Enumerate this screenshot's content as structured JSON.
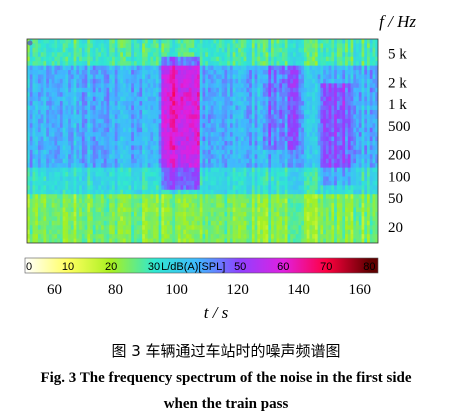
{
  "chart_data": {
    "type": "heatmap",
    "x_label": "t / s",
    "x_ticks": [
      60,
      80,
      100,
      120,
      140,
      160
    ],
    "x_range": [
      51,
      166
    ],
    "y_label": "f / Hz",
    "y_scale": "log",
    "y_ticks": [
      {
        "value": 20,
        "label": "20"
      },
      {
        "value": 50,
        "label": "50"
      },
      {
        "value": 100,
        "label": "100"
      },
      {
        "value": 200,
        "label": "200"
      },
      {
        "value": 500,
        "label": "500"
      },
      {
        "value": 1000,
        "label": "1 k"
      },
      {
        "value": 2000,
        "label": "2 k"
      },
      {
        "value": 5000,
        "label": "5 k"
      }
    ],
    "y_range": [
      12,
      8000
    ],
    "colorbar": {
      "label": "L/dB(A)[SPL]",
      "ticks": [
        0,
        10,
        20,
        30,
        50,
        60,
        70,
        80
      ],
      "range": [
        0,
        82
      ],
      "stops": [
        {
          "value": 0,
          "color": "#ffffff"
        },
        {
          "value": 10,
          "color": "#ffff60"
        },
        {
          "value": 20,
          "color": "#a8f020"
        },
        {
          "value": 30,
          "color": "#30e8d0"
        },
        {
          "value": 40,
          "color": "#40b8ff"
        },
        {
          "value": 50,
          "color": "#9040ff"
        },
        {
          "value": 60,
          "color": "#e020e0"
        },
        {
          "value": 70,
          "color": "#ff0040"
        },
        {
          "value": 80,
          "color": "#600000"
        }
      ]
    },
    "grid": false,
    "legend": "colorbar-bottom"
  },
  "caption": {
    "cn": "图 3  车辆通过车站时的噪声频谱图",
    "en_line1": "Fig. 3  The frequency spectrum of the noise in the first side",
    "en_line2": "when the train pass"
  }
}
